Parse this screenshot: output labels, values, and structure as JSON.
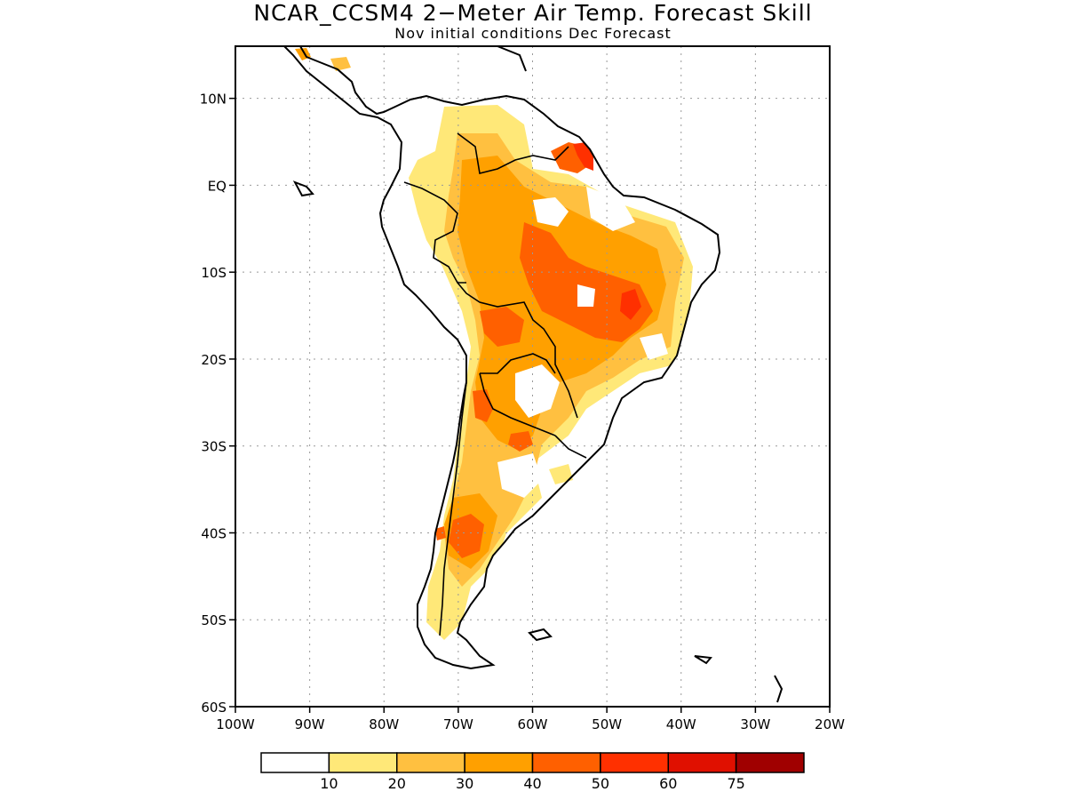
{
  "title": "NCAR_CCSM4 2−Meter Air Temp. Forecast Skill",
  "subtitle": "Nov initial conditions  Dec Forecast",
  "map": {
    "lon_range": [
      -100,
      -20
    ],
    "lat_range": [
      -60,
      16
    ],
    "lat_ticks": [
      {
        "value": 10,
        "label": "10N"
      },
      {
        "value": 0,
        "label": "EQ"
      },
      {
        "value": -10,
        "label": "10S"
      },
      {
        "value": -20,
        "label": "20S"
      },
      {
        "value": -30,
        "label": "30S"
      },
      {
        "value": -40,
        "label": "40S"
      },
      {
        "value": -50,
        "label": "50S"
      },
      {
        "value": -60,
        "label": "60S"
      }
    ],
    "lon_ticks": [
      {
        "value": -100,
        "label": "100W"
      },
      {
        "value": -90,
        "label": "90W"
      },
      {
        "value": -80,
        "label": "80W"
      },
      {
        "value": -70,
        "label": "70W"
      },
      {
        "value": -60,
        "label": "60W"
      },
      {
        "value": -50,
        "label": "50W"
      },
      {
        "value": -40,
        "label": "40W"
      },
      {
        "value": -30,
        "label": "30W"
      },
      {
        "value": -20,
        "label": "20W"
      }
    ],
    "grid": "dotted"
  },
  "colorbar": {
    "colors": [
      "#ffffff",
      "#ffe878",
      "#ffc040",
      "#ffa000",
      "#ff6000",
      "#ff3000",
      "#e01000",
      "#a00000"
    ],
    "labels": [
      "10",
      "20",
      "30",
      "40",
      "50",
      "60",
      "75"
    ]
  }
}
